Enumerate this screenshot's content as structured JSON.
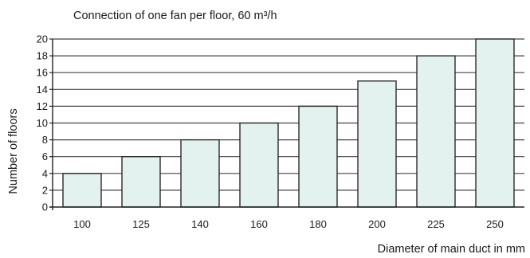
{
  "chart_data": {
    "type": "bar",
    "title": "Connection of one fan per floor, 60 m³/h",
    "xlabel": "Diameter of main duct in mm",
    "ylabel": "Number of floors",
    "categories": [
      "100",
      "125",
      "140",
      "160",
      "180",
      "200",
      "225",
      "250"
    ],
    "values": [
      4,
      6,
      8,
      10,
      12,
      15,
      18,
      20
    ],
    "ylim": [
      0,
      20
    ],
    "yticks": [
      0,
      2,
      4,
      6,
      8,
      10,
      12,
      14,
      16,
      18,
      20
    ],
    "grid": true,
    "colors": {
      "bar_fill": "#e3f1ef",
      "bar_stroke": "#2a2a2a",
      "grid": "#444444"
    }
  }
}
